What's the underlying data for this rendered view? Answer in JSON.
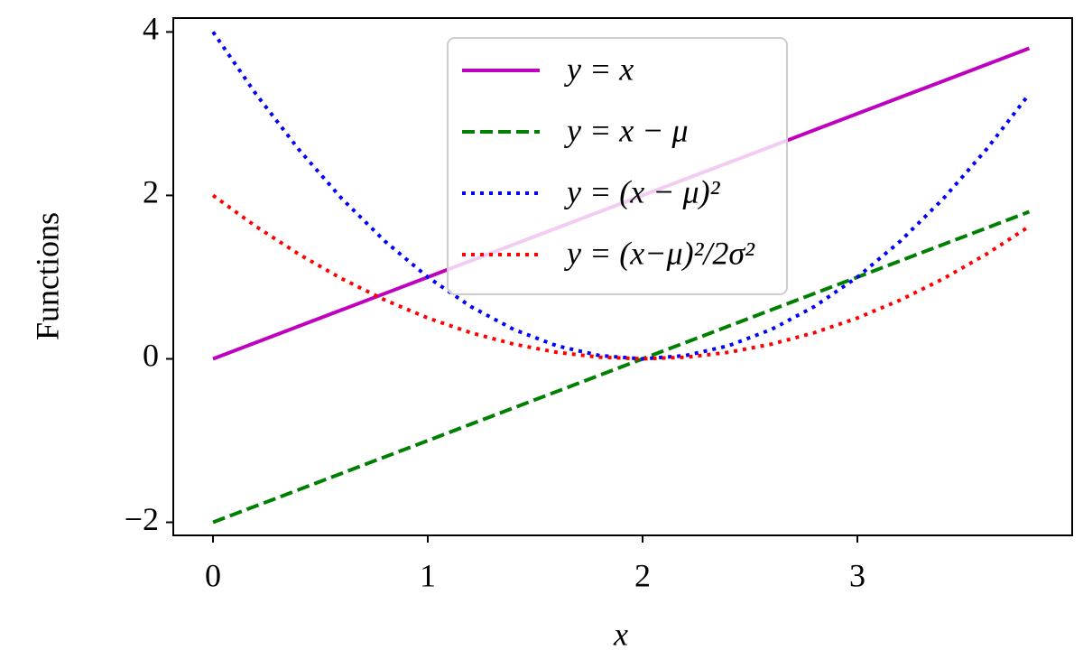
{
  "chart_data": {
    "type": "line",
    "xlabel": "x",
    "ylabel": "Functions",
    "x": [
      0,
      0.2,
      0.4,
      0.6,
      0.8,
      1.0,
      1.2,
      1.4,
      1.6,
      1.8,
      2.0,
      2.2,
      2.4,
      2.6,
      2.8,
      3.0,
      3.2,
      3.4,
      3.6,
      3.8
    ],
    "series": [
      {
        "name": "y = x",
        "color": "#bf00bf",
        "linestyle": "solid",
        "values": [
          0,
          0.2,
          0.4,
          0.6,
          0.8,
          1.0,
          1.2,
          1.4,
          1.6,
          1.8,
          2.0,
          2.2,
          2.4,
          2.6,
          2.8,
          3.0,
          3.2,
          3.4,
          3.6,
          3.8
        ]
      },
      {
        "name": "y = x − μ",
        "color": "#008000",
        "linestyle": "dashed",
        "values": [
          -2,
          -1.8,
          -1.6,
          -1.4,
          -1.2,
          -1,
          -0.8,
          -0.6,
          -0.4,
          -0.2,
          0,
          0.2,
          0.4,
          0.6,
          0.8,
          1,
          1.2,
          1.4,
          1.6,
          1.8
        ]
      },
      {
        "name": "y = (x − μ)²",
        "color": "#0000ff",
        "linestyle": "dotted",
        "values": [
          4,
          3.24,
          2.56,
          1.96,
          1.44,
          1,
          0.64,
          0.36,
          0.16,
          0.04,
          0,
          0.04,
          0.16,
          0.36,
          0.64,
          1,
          1.44,
          1.96,
          2.56,
          3.24
        ]
      },
      {
        "name": "y = (x−μ)²/2σ²",
        "color": "#ff0000",
        "linestyle": "dotted",
        "values": [
          2,
          1.62,
          1.28,
          0.98,
          0.72,
          0.5,
          0.32,
          0.18,
          0.08,
          0.02,
          0,
          0.02,
          0.08,
          0.18,
          0.32,
          0.5,
          0.72,
          0.98,
          1.28,
          1.62
        ]
      }
    ],
    "xlim": [
      -0.185,
      4.0
    ],
    "ylim": [
      -2.16,
      4.17
    ],
    "xticks": [
      0,
      1,
      2,
      3
    ],
    "yticks": [
      {
        "value": -2,
        "label": "−2"
      },
      0,
      2,
      4
    ],
    "grid": false,
    "legend": "upper center"
  }
}
